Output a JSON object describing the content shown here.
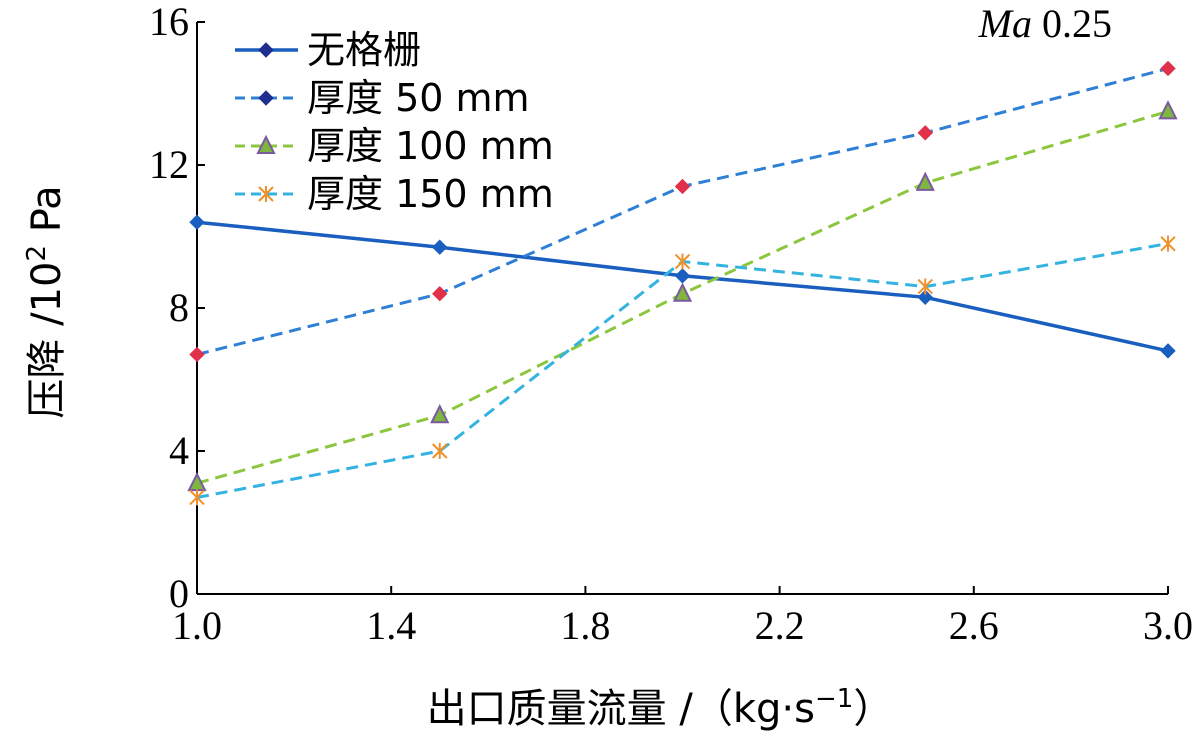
{
  "chart_data": {
    "type": "line",
    "x": [
      1.0,
      1.5,
      2.0,
      2.5,
      3.0
    ],
    "xlim": [
      1.0,
      3.0
    ],
    "ylim": [
      0,
      16
    ],
    "xticks": [
      "1.0",
      "1.4",
      "1.8",
      "2.2",
      "2.6",
      "3.0"
    ],
    "yticks": [
      "0",
      "4",
      "8",
      "12",
      "16"
    ],
    "xlabel": "出口质量流量 /（kg·s",
    "xlabel_sup": "−1",
    "xlabel_end": "）",
    "ylabel": "压降 /10",
    "ylabel_sup": "2",
    "ylabel_end": " Pa",
    "annotation": "Ma 0.25",
    "annotation_italic": "Ma",
    "annotation_value": "0.25",
    "grid": false,
    "legend_position": "top-left",
    "series": [
      {
        "name": "无格栅",
        "values": [
          10.4,
          9.7,
          8.9,
          8.3,
          6.8
        ],
        "color": "#1a5fbf",
        "dash": "solid",
        "marker": "diamond",
        "marker_color": "#1a5fbf"
      },
      {
        "name": "厚度 50 mm",
        "values": [
          6.7,
          8.4,
          11.4,
          12.9,
          14.7
        ],
        "color": "#2e7fd6",
        "dash": "dashed",
        "marker": "diamond",
        "marker_color": "#e0304a"
      },
      {
        "name": "厚度 100 mm",
        "values": [
          3.1,
          5.0,
          8.4,
          11.5,
          13.5
        ],
        "color": "#8cc63f",
        "dash": "dashed",
        "marker": "triangle",
        "marker_color": "#7a5a9e"
      },
      {
        "name": "厚度 150 mm",
        "values": [
          2.7,
          4.0,
          9.3,
          8.6,
          9.8
        ],
        "color": "#35b3e0",
        "dash": "dashed",
        "marker": "star",
        "marker_color": "#f0902a"
      }
    ]
  }
}
